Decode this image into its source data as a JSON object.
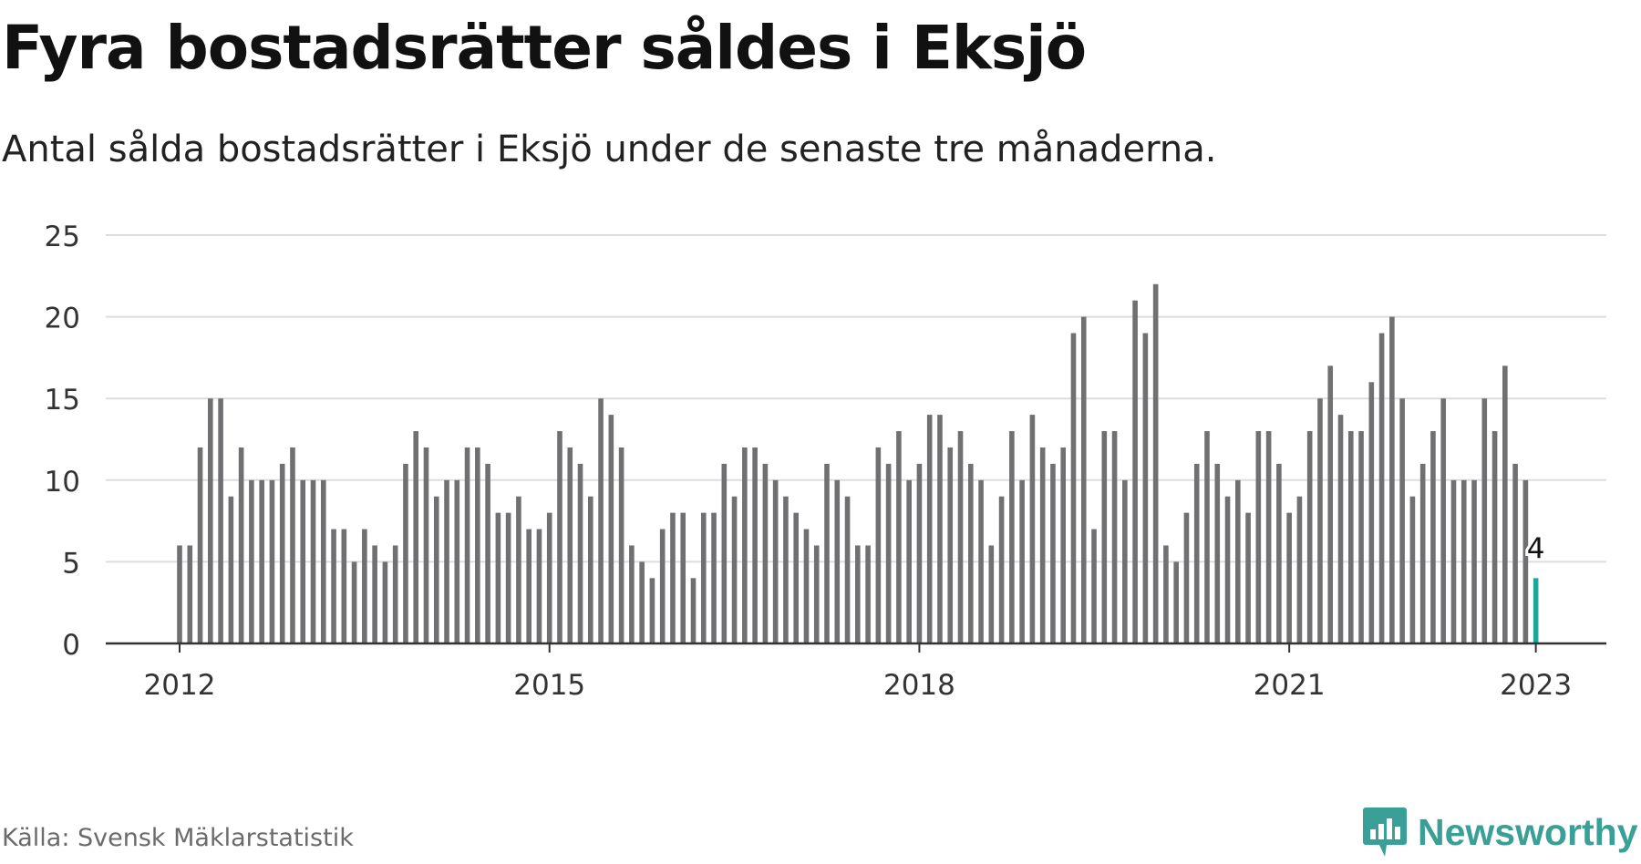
{
  "header": {
    "title": "Fyra bostadsrätter såldes i Eksjö",
    "subtitle": "Antal sålda bostadsrätter i Eksjö under de senaste tre månaderna."
  },
  "footer": {
    "source": "Källa: Svensk Mäklarstatistik",
    "brand": "Newsworthy"
  },
  "colors": {
    "bar": "#707073",
    "highlight": "#20a59b",
    "grid": "#dddddd",
    "axis": "#333333",
    "brand": "#3a9f96"
  },
  "chart_data": {
    "type": "bar",
    "ylim": [
      0,
      25
    ],
    "yticks": [
      "0",
      "5",
      "10",
      "15",
      "20",
      "25"
    ],
    "xticks": [
      {
        "label": "2012",
        "index": 0
      },
      {
        "label": "2015",
        "index": 36
      },
      {
        "label": "2018",
        "index": 72
      },
      {
        "label": "2021",
        "index": 108
      },
      {
        "label": "2023",
        "index": 132
      }
    ],
    "grid": true,
    "start": "2012-01",
    "highlight_label": "4",
    "values": [
      6,
      6,
      12,
      15,
      15,
      9,
      12,
      10,
      10,
      10,
      11,
      12,
      10,
      10,
      10,
      7,
      7,
      5,
      7,
      6,
      5,
      6,
      11,
      13,
      12,
      9,
      10,
      10,
      12,
      12,
      11,
      8,
      8,
      9,
      7,
      7,
      8,
      13,
      12,
      11,
      9,
      15,
      14,
      12,
      6,
      5,
      4,
      7,
      8,
      8,
      4,
      8,
      8,
      11,
      9,
      12,
      12,
      11,
      10,
      9,
      8,
      7,
      6,
      11,
      10,
      9,
      6,
      6,
      12,
      11,
      13,
      10,
      11,
      14,
      14,
      12,
      13,
      11,
      10,
      6,
      9,
      13,
      10,
      14,
      12,
      11,
      12,
      19,
      20,
      7,
      13,
      13,
      10,
      21,
      19,
      22,
      6,
      5,
      8,
      11,
      13,
      11,
      9,
      10,
      8,
      13,
      13,
      11,
      8,
      9,
      13,
      15,
      17,
      14,
      13,
      13,
      16,
      19,
      20,
      15,
      9,
      11,
      13,
      15,
      10,
      10,
      10,
      15,
      13,
      17,
      11,
      10,
      4
    ]
  }
}
